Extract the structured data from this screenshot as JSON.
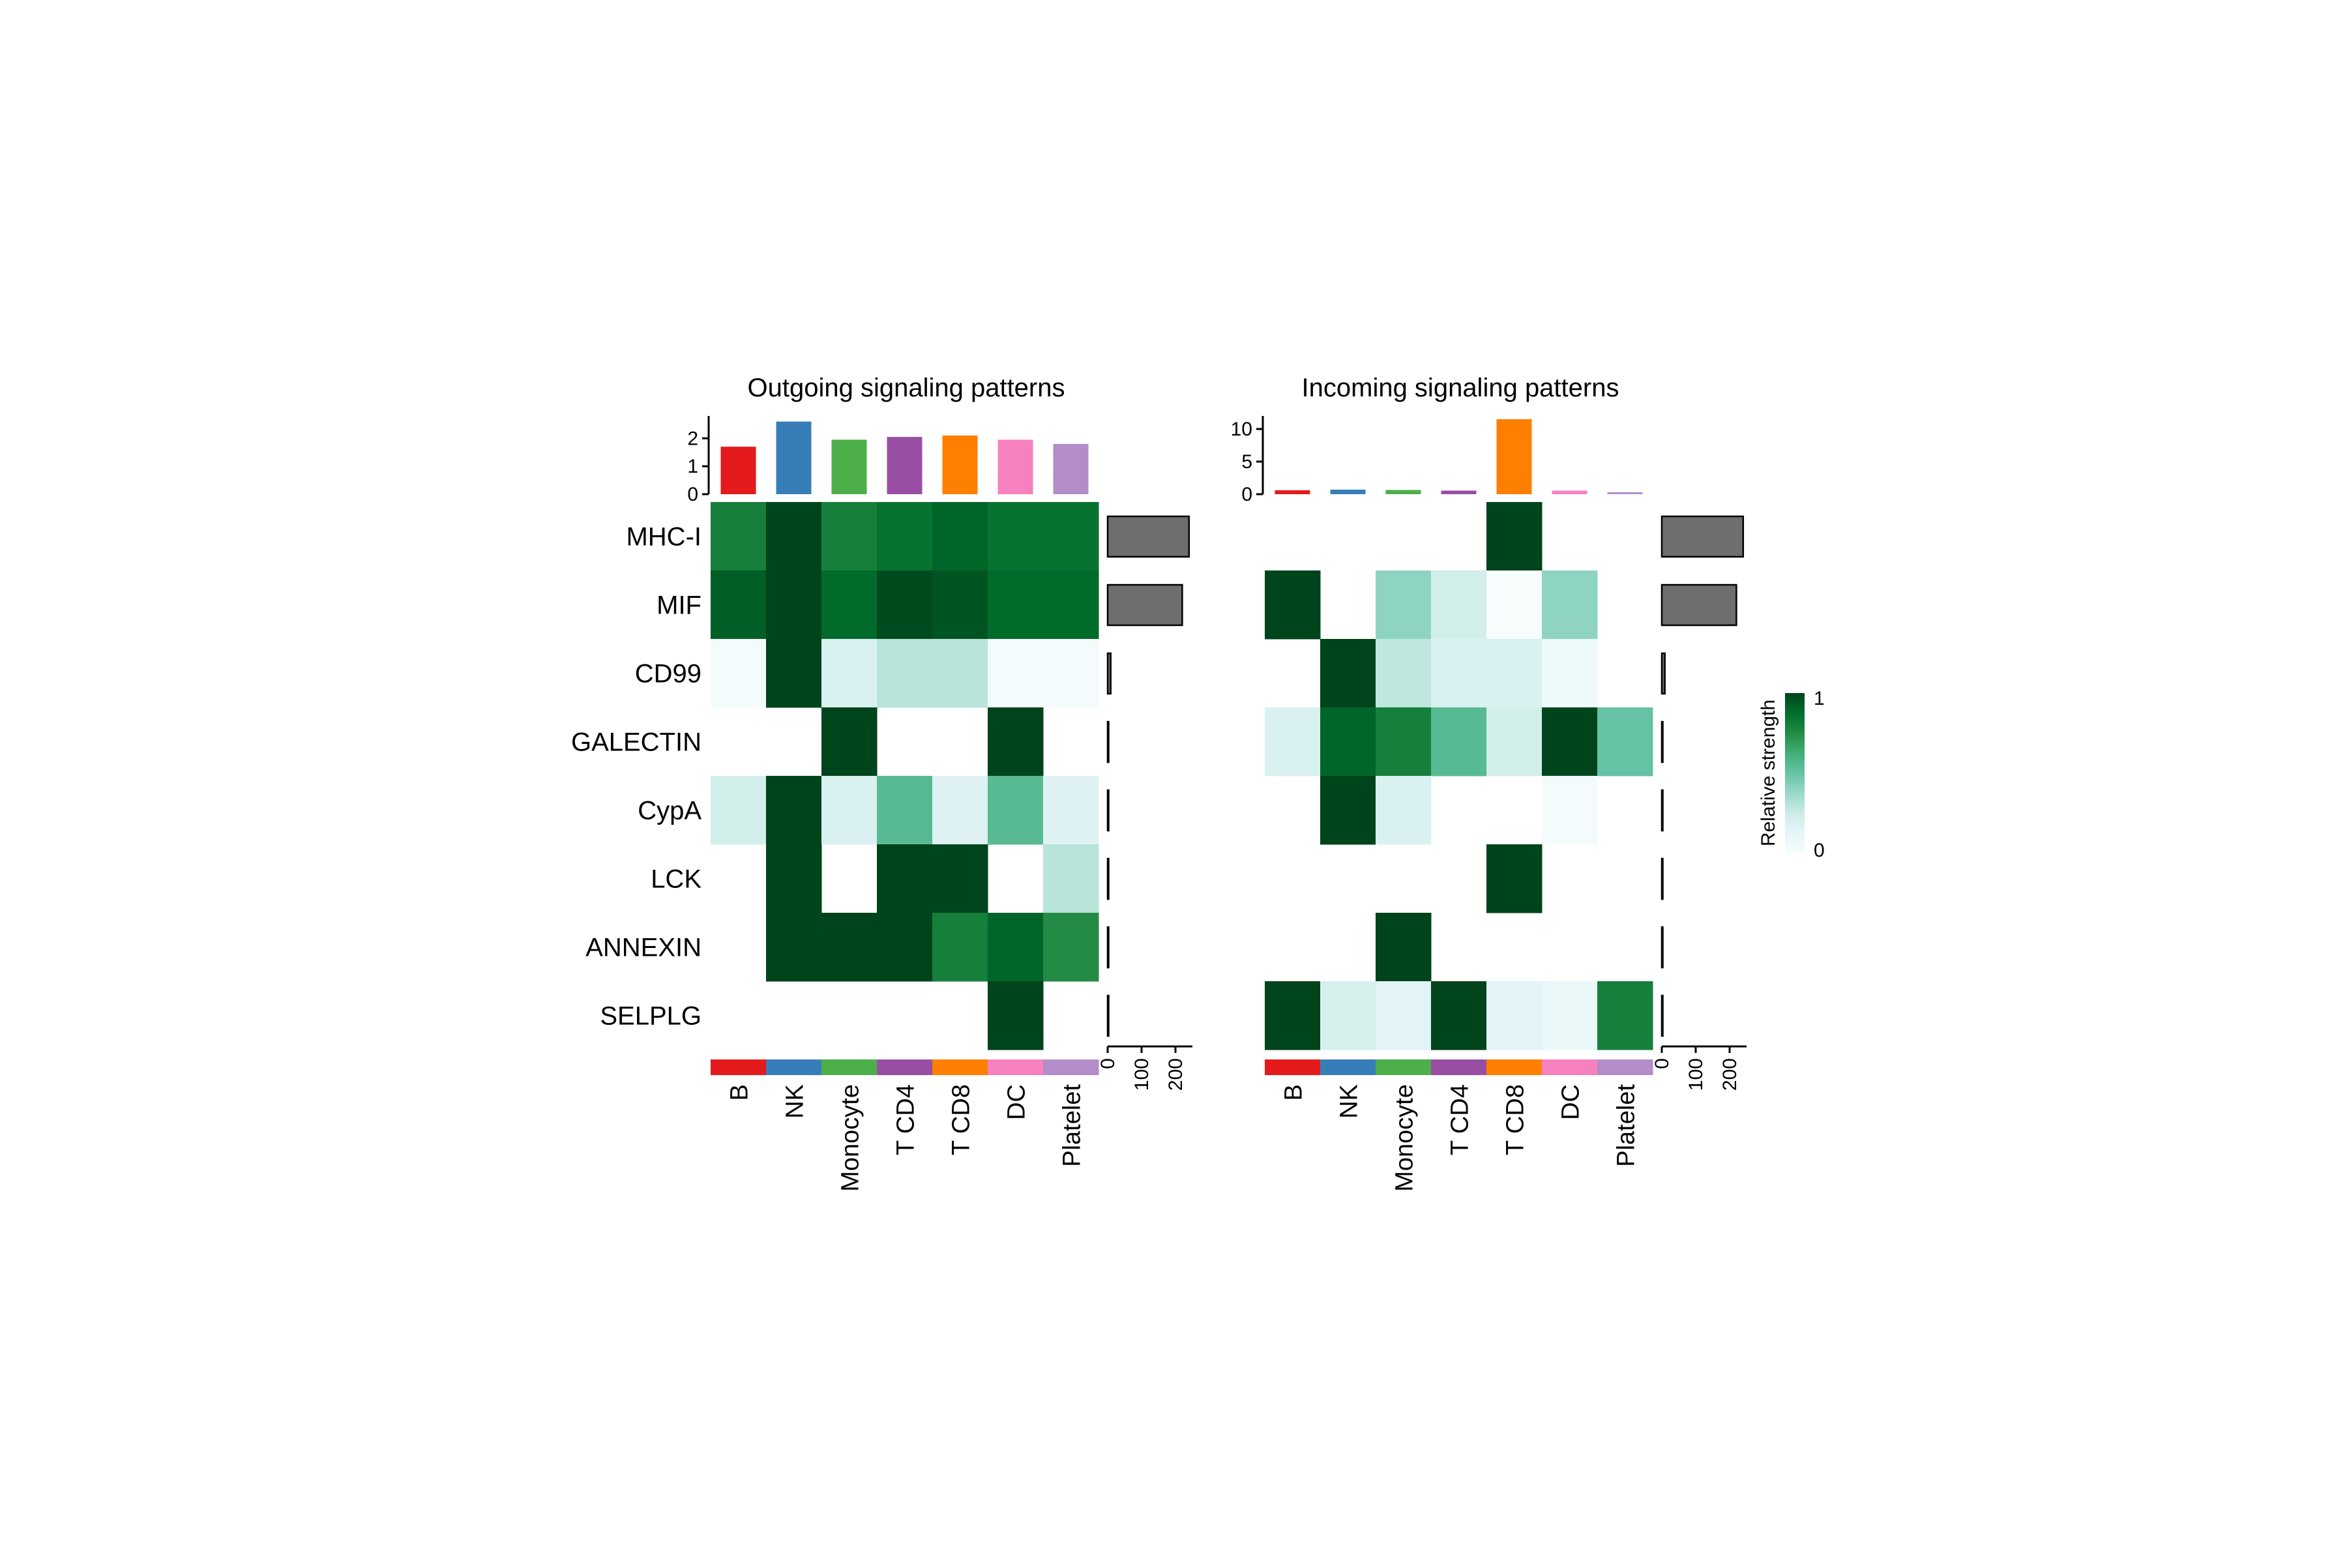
{
  "chart_data": [
    {
      "type": "heatmap",
      "title": "Outgoing signaling patterns",
      "rows": [
        "MHC-I",
        "MIF",
        "CD99",
        "GALECTIN",
        "CypA",
        "LCK",
        "ANNEXIN",
        "SELPLG"
      ],
      "columns": [
        "B",
        "NK",
        "Monocyte",
        "T CD4",
        "T CD8",
        "DC",
        "Platelet"
      ],
      "column_colors": [
        "#E41A1C",
        "#377EB8",
        "#4DAF4A",
        "#984EA3",
        "#FF7F00",
        "#F781BF",
        "#B28DC8"
      ],
      "values": [
        [
          0.8,
          1.0,
          0.8,
          0.85,
          0.9,
          0.85,
          0.85
        ],
        [
          0.92,
          1.0,
          0.88,
          0.98,
          0.95,
          0.88,
          0.88
        ],
        [
          0.02,
          1.0,
          0.18,
          0.3,
          0.3,
          0.02,
          0.02
        ],
        [
          null,
          null,
          1.0,
          null,
          null,
          1.0,
          null
        ],
        [
          0.22,
          1.0,
          0.18,
          0.55,
          0.16,
          0.55,
          0.16
        ],
        [
          null,
          1.0,
          null,
          1.0,
          1.0,
          null,
          0.3
        ],
        [
          null,
          1.0,
          1.0,
          1.0,
          0.8,
          0.9,
          0.75
        ],
        [
          null,
          null,
          null,
          null,
          null,
          1.0,
          null
        ]
      ],
      "top_bar": {
        "values": [
          1.7,
          2.6,
          1.95,
          2.05,
          2.1,
          1.95,
          1.8
        ],
        "ticks": [
          0,
          1,
          2
        ],
        "ylim": [
          0,
          2.8
        ]
      },
      "right_bar": {
        "values": [
          240,
          220,
          9,
          2,
          2,
          2,
          2,
          2
        ],
        "ticks": [
          0,
          100,
          200
        ],
        "xlim": [
          0,
          250
        ]
      }
    },
    {
      "type": "heatmap",
      "title": "Incoming signaling patterns",
      "rows": [
        "MHC-I",
        "MIF",
        "CD99",
        "GALECTIN",
        "CypA",
        "LCK",
        "ANNEXIN",
        "SELPLG"
      ],
      "columns": [
        "B",
        "NK",
        "Monocyte",
        "T CD4",
        "T CD8",
        "DC",
        "Platelet"
      ],
      "column_colors": [
        "#E41A1C",
        "#377EB8",
        "#4DAF4A",
        "#984EA3",
        "#FF7F00",
        "#F781BF",
        "#B28DC8"
      ],
      "values": [
        [
          null,
          null,
          null,
          null,
          1.0,
          null,
          null
        ],
        [
          1.0,
          null,
          0.4,
          0.22,
          0.0,
          0.4,
          null
        ],
        [
          null,
          1.0,
          0.28,
          0.18,
          0.18,
          0.06,
          null
        ],
        [
          0.18,
          0.9,
          0.8,
          0.55,
          0.22,
          1.0,
          0.5
        ],
        [
          null,
          1.0,
          0.18,
          null,
          null,
          0.02,
          null
        ],
        [
          null,
          null,
          null,
          null,
          1.0,
          null,
          null
        ],
        [
          null,
          null,
          1.0,
          null,
          null,
          null,
          null
        ],
        [
          1.0,
          0.2,
          0.14,
          1.0,
          0.14,
          0.08,
          0.8
        ]
      ],
      "top_bar": {
        "values": [
          0.6,
          0.7,
          0.65,
          0.55,
          11.5,
          0.55,
          0.3
        ],
        "ticks": [
          0,
          5,
          10
        ],
        "ylim": [
          0,
          12
        ]
      },
      "right_bar": {
        "values": [
          240,
          220,
          9,
          2,
          2,
          2,
          2,
          2
        ],
        "ticks": [
          0,
          100,
          200
        ],
        "xlim": [
          0,
          250
        ]
      }
    }
  ],
  "legend": {
    "title": "Relative strength",
    "min_label": "0",
    "max_label": "1",
    "colors": [
      "#F7FCFD",
      "#E5F5F9",
      "#CCECE6",
      "#99D8C9",
      "#66C2A4",
      "#41AE76",
      "#238B45",
      "#006D2C",
      "#00441B"
    ]
  },
  "bar_fill_color": "#6E6E6E"
}
